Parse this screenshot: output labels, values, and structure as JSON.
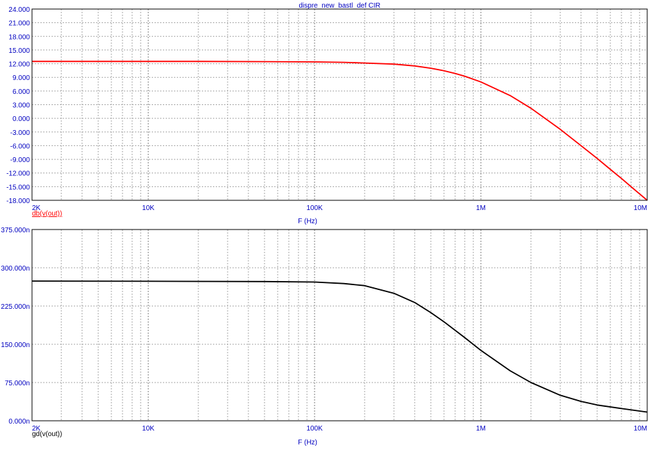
{
  "chart_data": [
    {
      "type": "line",
      "title": "dispre_new_bastl_def CIR",
      "xlabel": "F (Hz)",
      "ylabel": "",
      "x_scale": "log",
      "xlim": [
        2000,
        10000000
      ],
      "ylim": [
        -18,
        24
      ],
      "x_ticks": [
        2000,
        10000,
        100000,
        1000000,
        10000000
      ],
      "x_tick_labels": [
        "2K",
        "10K",
        "100K",
        "1M",
        "10M"
      ],
      "y_ticks": [
        24,
        21,
        18,
        15,
        12,
        9,
        6,
        3,
        0,
        -3,
        -6,
        -9,
        -12,
        -15,
        -18
      ],
      "y_tick_labels": [
        "24.000",
        "21.000",
        "18.000",
        "15.000",
        "12.000",
        "9.000",
        "6.000",
        "3.000",
        "0.000",
        "-3.000",
        "-6.000",
        "-9.000",
        "-12.000",
        "-15.000",
        "-18.000"
      ],
      "grid": true,
      "series": [
        {
          "name": "db(v(out))",
          "color": "#ff0000",
          "x": [
            2000,
            5000,
            10000,
            20000,
            50000,
            100000,
            150000,
            200000,
            300000,
            400000,
            500000,
            600000,
            700000,
            800000,
            1000000,
            1500000,
            2000000,
            3000000,
            4000000,
            5000000,
            6000000,
            7000000,
            8000000,
            9000000,
            10000000
          ],
          "values": [
            12.5,
            12.5,
            12.5,
            12.5,
            12.45,
            12.4,
            12.3,
            12.15,
            11.9,
            11.5,
            11.0,
            10.45,
            9.85,
            9.25,
            8.0,
            5.0,
            2.2,
            -2.4,
            -6.0,
            -8.8,
            -11.2,
            -13.2,
            -15.0,
            -16.6,
            -18.0
          ]
        }
      ]
    },
    {
      "type": "line",
      "title": "",
      "xlabel": "F (Hz)",
      "ylabel": "",
      "x_scale": "log",
      "xlim": [
        2000,
        10000000
      ],
      "ylim": [
        0,
        375
      ],
      "x_ticks": [
        2000,
        10000,
        100000,
        1000000,
        10000000
      ],
      "x_tick_labels": [
        "2K",
        "10K",
        "100K",
        "1M",
        "10M"
      ],
      "y_ticks": [
        375,
        300,
        225,
        150,
        75,
        0
      ],
      "y_tick_labels": [
        "375.000n",
        "300.000n",
        "225.000n",
        "150.000n",
        "75.000n",
        "0.000n"
      ],
      "grid": true,
      "series": [
        {
          "name": "gd(v(out))",
          "color": "#000000",
          "x": [
            2000,
            10000,
            50000,
            100000,
            150000,
            200000,
            300000,
            400000,
            500000,
            600000,
            800000,
            1000000,
            1500000,
            2000000,
            3000000,
            4000000,
            5000000,
            7000000,
            10000000
          ],
          "values": [
            274,
            273.5,
            273,
            272,
            269,
            265,
            250,
            232,
            212,
            194,
            163,
            138,
            98,
            75,
            50,
            38,
            31,
            24,
            17
          ]
        }
      ]
    }
  ]
}
